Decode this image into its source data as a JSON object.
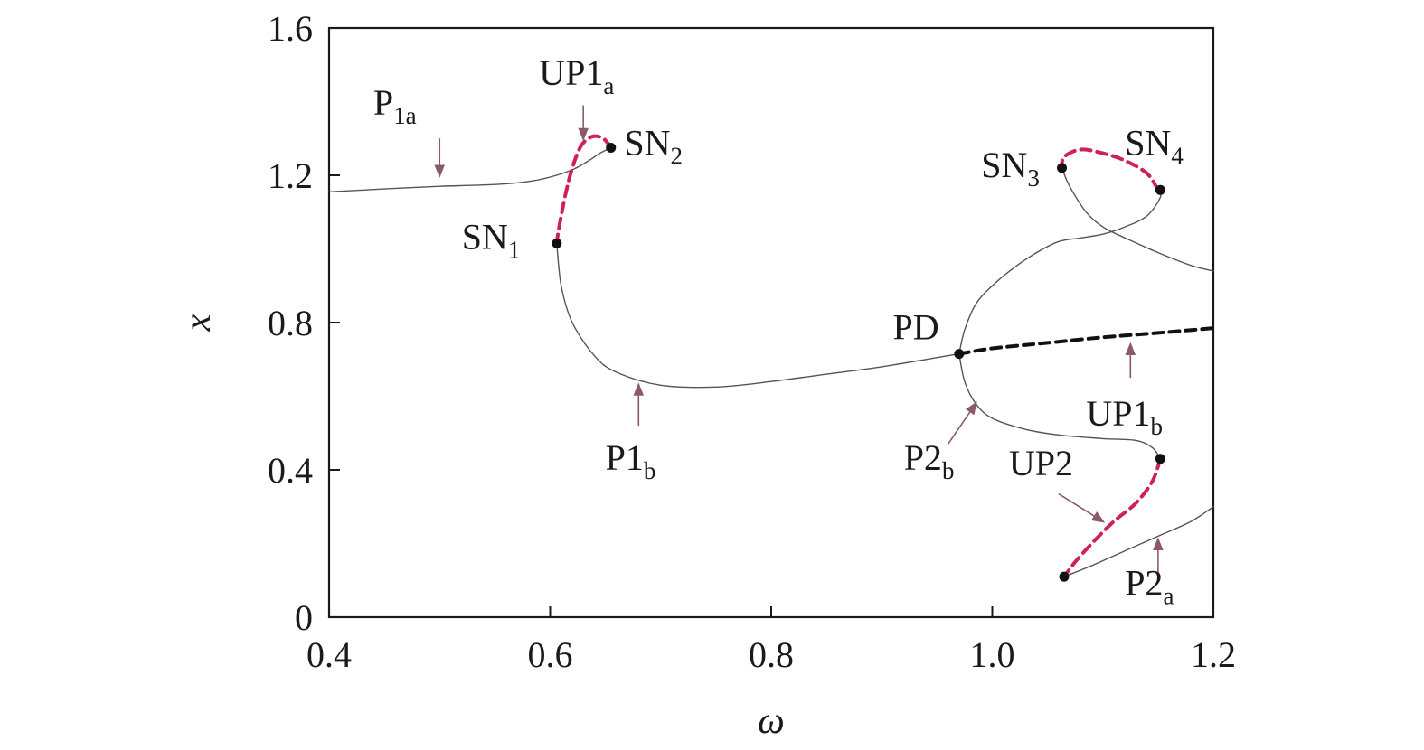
{
  "chart_data": {
    "type": "line",
    "title": "",
    "xlabel": "ω",
    "ylabel": "x",
    "xlim": [
      0.4,
      1.2
    ],
    "ylim": [
      0,
      1.6
    ],
    "xticks": [
      0.4,
      0.6,
      0.8,
      1.0,
      1.2
    ],
    "xtick_labels": [
      "0.4",
      "0.6",
      "0.8",
      "1.0",
      "1.2"
    ],
    "yticks": [
      0,
      0.4,
      0.8,
      1.2,
      1.6
    ],
    "ytick_labels": [
      "0",
      "0.4",
      "0.8",
      "1.2",
      "1.6"
    ],
    "grid": false,
    "colors": {
      "stable": "#555555",
      "stable_highlight": "#d0205a",
      "unstable": "#d0205a",
      "unstable_period1": "#111111",
      "arrow": "#8a5a6a"
    },
    "series": [
      {
        "id": "P1a",
        "stability": "stable",
        "x": [
          0.4,
          0.45,
          0.5,
          0.55,
          0.58,
          0.6,
          0.62,
          0.635,
          0.645,
          0.655
        ],
        "y": [
          1.155,
          1.163,
          1.17,
          1.175,
          1.183,
          1.195,
          1.215,
          1.24,
          1.26,
          1.275
        ]
      },
      {
        "id": "UP1a",
        "stability": "unstable",
        "x": [
          0.655,
          0.648,
          0.638,
          0.628,
          0.62,
          0.614,
          0.61,
          0.607,
          0.606
        ],
        "y": [
          1.275,
          1.3,
          1.305,
          1.28,
          1.22,
          1.15,
          1.09,
          1.04,
          1.015
        ]
      },
      {
        "id": "P1b",
        "stability": "stable",
        "x": [
          0.606,
          0.61,
          0.62,
          0.64,
          0.66,
          0.7,
          0.75,
          0.8,
          0.85,
          0.9,
          0.95,
          0.97
        ],
        "y": [
          1.015,
          0.9,
          0.8,
          0.71,
          0.665,
          0.63,
          0.625,
          0.64,
          0.66,
          0.68,
          0.705,
          0.715
        ]
      },
      {
        "id": "UP1b",
        "stability": "unstable",
        "x": [
          0.97,
          1.0,
          1.05,
          1.1,
          1.15,
          1.2
        ],
        "y": [
          0.715,
          0.73,
          0.745,
          0.76,
          0.772,
          0.785
        ]
      },
      {
        "id": "P2_upper",
        "stability": "stable",
        "x": [
          0.97,
          0.975,
          0.985,
          1.0,
          1.02,
          1.04,
          1.06,
          1.08,
          1.1,
          1.12,
          1.14,
          1.152,
          1.15
        ],
        "y": [
          0.715,
          0.78,
          0.85,
          0.9,
          0.95,
          0.99,
          1.02,
          1.03,
          1.04,
          1.06,
          1.09,
          1.14,
          1.16
        ]
      },
      {
        "id": "UP2_upper",
        "stability": "unstable",
        "x": [
          1.15,
          1.14,
          1.12,
          1.1,
          1.08,
          1.065,
          1.063
        ],
        "y": [
          1.16,
          1.205,
          1.24,
          1.26,
          1.27,
          1.25,
          1.22
        ]
      },
      {
        "id": "P2_upper_right",
        "stability": "stable",
        "x": [
          1.063,
          1.07,
          1.085,
          1.1,
          1.12,
          1.15,
          1.18,
          1.2
        ],
        "y": [
          1.22,
          1.17,
          1.1,
          1.06,
          1.03,
          0.99,
          0.955,
          0.94
        ]
      },
      {
        "id": "P2b",
        "stability": "stable",
        "x": [
          0.97,
          0.975,
          0.985,
          1.0,
          1.03,
          1.06,
          1.1,
          1.13,
          1.145,
          1.152
        ],
        "y": [
          0.715,
          0.64,
          0.58,
          0.54,
          0.51,
          0.495,
          0.485,
          0.48,
          0.46,
          0.43
        ]
      },
      {
        "id": "UP2",
        "stability": "unstable",
        "x": [
          1.152,
          1.145,
          1.13,
          1.11,
          1.09,
          1.075,
          1.065
        ],
        "y": [
          0.43,
          0.37,
          0.31,
          0.26,
          0.2,
          0.15,
          0.11
        ]
      },
      {
        "id": "P2a",
        "stability": "stable",
        "x": [
          1.065,
          1.09,
          1.12,
          1.15,
          1.18,
          1.2
        ],
        "y": [
          0.11,
          0.14,
          0.18,
          0.22,
          0.26,
          0.3
        ]
      }
    ],
    "points": [
      {
        "label": "SN1",
        "x": 0.606,
        "y": 1.015
      },
      {
        "label": "SN2",
        "x": 0.655,
        "y": 1.275
      },
      {
        "label": "SN3",
        "x": 1.063,
        "y": 1.22
      },
      {
        "label": "SN4",
        "x": 1.152,
        "y": 1.16
      },
      {
        "label": "PD",
        "x": 0.97,
        "y": 0.715
      },
      {
        "x": 1.152,
        "y": 0.43
      },
      {
        "x": 1.065,
        "y": 0.11
      }
    ],
    "annotations": [
      {
        "id": "ann-sn1",
        "main": "SN",
        "sub": "1",
        "x": 0.52,
        "y": 1.0,
        "anchor": "start"
      },
      {
        "id": "ann-sn2",
        "main": "SN",
        "sub": "2",
        "x": 0.667,
        "y": 1.255,
        "anchor": "start"
      },
      {
        "id": "ann-sn3",
        "main": "SN",
        "sub": "3",
        "x": 0.99,
        "y": 1.195,
        "anchor": "start"
      },
      {
        "id": "ann-sn4",
        "main": "SN",
        "sub": "4",
        "x": 1.12,
        "y": 1.255,
        "anchor": "start"
      },
      {
        "id": "ann-pd",
        "main": "PD",
        "sub": "",
        "x": 0.91,
        "y": 0.755,
        "anchor": "start"
      },
      {
        "id": "ann-up1a",
        "main": "UP1",
        "sub": "a",
        "x": 0.59,
        "y": 1.445,
        "anchor": "start"
      },
      {
        "id": "ann-p1a",
        "main": "P",
        "sub": "1a",
        "x": 0.44,
        "y": 1.365,
        "anchor": "start"
      },
      {
        "id": "ann-p1b",
        "main": "P1",
        "sub": "b",
        "x": 0.65,
        "y": 0.4,
        "anchor": "start"
      },
      {
        "id": "ann-p2b",
        "main": "P2",
        "sub": "b",
        "x": 0.92,
        "y": 0.4,
        "anchor": "start"
      },
      {
        "id": "ann-up1b",
        "main": "UP1",
        "sub": "b",
        "x": 1.085,
        "y": 0.52,
        "anchor": "start"
      },
      {
        "id": "ann-up2",
        "main": "UP2",
        "sub": "",
        "x": 1.015,
        "y": 0.385,
        "anchor": "start"
      },
      {
        "id": "ann-p2a",
        "main": "P2",
        "sub": "a",
        "x": 1.12,
        "y": 0.06,
        "anchor": "start"
      }
    ],
    "arrows": [
      {
        "id": "arrow-up1a",
        "from": [
          0.63,
          1.39
        ],
        "to": [
          0.63,
          1.3
        ]
      },
      {
        "id": "arrow-p1a",
        "from": [
          0.5,
          1.3
        ],
        "to": [
          0.5,
          1.2
        ]
      },
      {
        "id": "arrow-p1b",
        "from": [
          0.68,
          0.52
        ],
        "to": [
          0.68,
          0.63
        ]
      },
      {
        "id": "arrow-p2b",
        "from": [
          0.96,
          0.47
        ],
        "to": [
          0.985,
          0.58
        ]
      },
      {
        "id": "arrow-up1b",
        "from": [
          1.125,
          0.65
        ],
        "to": [
          1.125,
          0.74
        ]
      },
      {
        "id": "arrow-up2",
        "from": [
          1.06,
          0.335
        ],
        "to": [
          1.1,
          0.26
        ]
      },
      {
        "id": "arrow-p2a",
        "from": [
          1.15,
          0.11
        ],
        "to": [
          1.15,
          0.21
        ]
      }
    ]
  }
}
